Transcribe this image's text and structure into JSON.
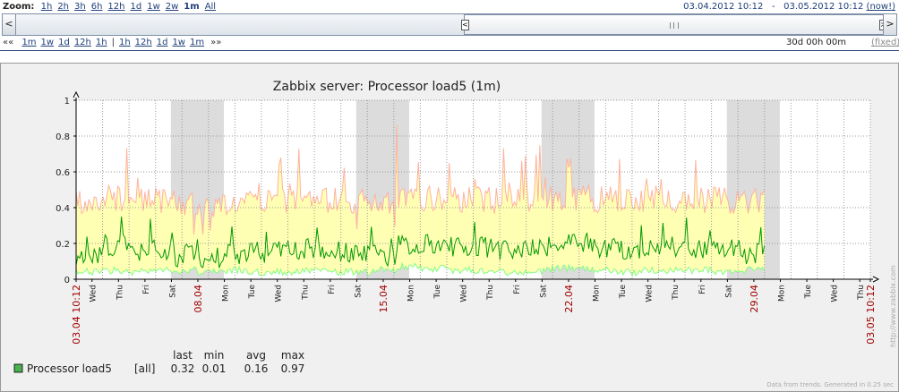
{
  "zoom": {
    "label": "Zoom:",
    "items": [
      "1h",
      "2h",
      "3h",
      "6h",
      "12h",
      "1d",
      "1w",
      "2w",
      "1m",
      "All"
    ],
    "current": "1m"
  },
  "period": {
    "from": "03.04.2012 10:12",
    "separator": "-",
    "to": "03.05.2012 10:12",
    "now": "(now!)"
  },
  "scrollbar": {
    "left_arrow": "<",
    "right_arrow": ">",
    "left_handle": "<",
    "right_handle": ">"
  },
  "nav": {
    "back_arrows": "««",
    "back": [
      "1m",
      "1w",
      "1d",
      "12h",
      "1h"
    ],
    "separator": "|",
    "forward": [
      "1h",
      "12h",
      "1d",
      "1w",
      "1m"
    ],
    "forward_arrows": "»»",
    "duration": "30d 00h 00m",
    "fixed": "(fixed)"
  },
  "graph": {
    "title": "Zabbix server: Processor load5  (1m)",
    "watermark": "http://www.zabbix.com",
    "footer": "Data from trends. Generated in 0.25 sec",
    "colors": {
      "avg": "#009900",
      "min": "#80ff80",
      "max": "#ffb2a0",
      "band": "#ffffb4",
      "weekend": "#dcdcdc",
      "axis": "#000000",
      "grid": "#999999",
      "date_red": "#a00000"
    }
  },
  "legend": {
    "headers": [
      "last",
      "min",
      "avg",
      "max"
    ],
    "items": [
      {
        "name": "Processor load5",
        "func": "[all]",
        "last": "0.32",
        "min": "0.01",
        "avg": "0.16",
        "max": "0.97",
        "color": "#4caf50"
      }
    ]
  },
  "chart_data": {
    "type": "line",
    "title": "Zabbix server: Processor load5  (1m)",
    "ylim": [
      0,
      1
    ],
    "y_ticks": [
      "0",
      "0.2",
      "0.4",
      "0.6",
      "0.8",
      "1"
    ],
    "x_tick_labels": [
      "03.04 10:12",
      "Wed",
      "Thu",
      "Fri",
      "Sat",
      "08.04",
      "Mon",
      "Tue",
      "Wed",
      "Thu",
      "Fri",
      "Sat",
      "15.04",
      "Mon",
      "Tue",
      "Wed",
      "Thu",
      "Fri",
      "Sat",
      "22.04",
      "Mon",
      "Tue",
      "Wed",
      "Thu",
      "Fri",
      "Sat",
      "29.04",
      "Mon",
      "Tue",
      "Wed",
      "Thu",
      "03.05 10:12"
    ],
    "red_labels": [
      "03.04 10:12",
      "08.04",
      "15.04",
      "22.04",
      "29.04",
      "03.05 10:12"
    ],
    "weekends": [
      [
        "Sat",
        "Sun"
      ],
      [
        "Sat",
        "Sun"
      ],
      [
        "Sat",
        "Sun"
      ],
      [
        "Sat",
        "Sun"
      ]
    ],
    "grid": true,
    "series": [
      {
        "name": "Processor load5",
        "stat": "max",
        "peaks": [
          0.4,
          0.73,
          0.78,
          0.62,
          0.3,
          0.35,
          0.48,
          0.7,
          0.76,
          0.8,
          0.67,
          0.45,
          0.38,
          0.95,
          0.72,
          0.72,
          0.78,
          0.74,
          0.92,
          0.68,
          0.7,
          0.79,
          0.72,
          0.68,
          0.68,
          0.68,
          0.53,
          0.4
        ]
      },
      {
        "name": "Processor load5",
        "stat": "avg",
        "values": [
          0.13,
          0.19,
          0.15,
          0.16,
          0.13,
          0.12,
          0.14,
          0.15,
          0.16,
          0.17,
          0.16,
          0.14,
          0.13,
          0.19,
          0.2,
          0.18,
          0.18,
          0.16,
          0.17,
          0.18,
          0.2,
          0.18,
          0.17,
          0.18,
          0.18,
          0.17,
          0.17,
          0.14
        ]
      },
      {
        "name": "Processor load5",
        "stat": "min",
        "values": [
          0.04,
          0.05,
          0.04,
          0.05,
          0.05,
          0.04,
          0.05,
          0.04,
          0.04,
          0.05,
          0.04,
          0.04,
          0.05,
          0.07,
          0.06,
          0.05,
          0.05,
          0.04,
          0.04,
          0.06,
          0.06,
          0.05,
          0.04,
          0.05,
          0.05,
          0.05,
          0.04,
          0.05
        ]
      }
    ]
  }
}
